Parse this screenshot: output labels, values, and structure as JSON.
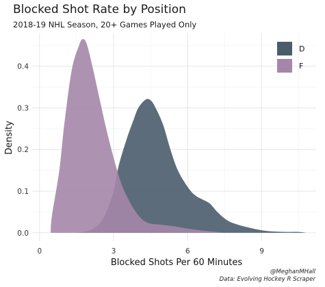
{
  "chart_data": {
    "type": "area",
    "title": "Blocked Shot Rate by Position",
    "subtitle": "2018-19 NHL Season, 20+ Games Played Only",
    "xlabel": "Blocked Shots Per 60 Minutes",
    "ylabel": "Density",
    "xlim": [
      -0.3,
      11.2
    ],
    "ylim": [
      -0.02,
      0.48
    ],
    "x_ticks": [
      0,
      3,
      6,
      9
    ],
    "y_ticks": [
      0.0,
      0.1,
      0.2,
      0.3,
      0.4
    ],
    "y_tick_labels": [
      "0.0",
      "0.1",
      "0.2",
      "0.3",
      "0.4"
    ],
    "grid": true,
    "legend_position": "top-right",
    "series": [
      {
        "name": "D",
        "color": "#4a5c6c",
        "x": [
          1.5,
          2.0,
          2.4,
          2.7,
          3.0,
          3.2,
          3.5,
          3.8,
          4.0,
          4.3,
          4.5,
          4.7,
          5.0,
          5.3,
          5.6,
          6.0,
          6.3,
          6.6,
          6.9,
          7.2,
          7.6,
          8.0,
          8.5,
          9.0,
          9.5,
          10.0,
          10.5,
          10.8
        ],
        "y": [
          0.0,
          0.005,
          0.02,
          0.05,
          0.1,
          0.16,
          0.22,
          0.27,
          0.3,
          0.32,
          0.318,
          0.3,
          0.26,
          0.2,
          0.15,
          0.11,
          0.09,
          0.08,
          0.07,
          0.05,
          0.03,
          0.02,
          0.012,
          0.006,
          0.003,
          0.002,
          0.002,
          0.0
        ]
      },
      {
        "name": "F",
        "color": "#a487a8",
        "x": [
          0.45,
          0.5,
          0.8,
          1.0,
          1.3,
          1.6,
          1.75,
          1.9,
          2.1,
          2.4,
          2.7,
          3.0,
          3.3,
          3.6,
          3.9,
          4.2,
          4.5,
          4.8,
          5.1,
          5.5,
          6.0,
          6.5,
          7.0,
          7.5
        ],
        "y": [
          0.0,
          0.04,
          0.15,
          0.26,
          0.39,
          0.45,
          0.465,
          0.455,
          0.41,
          0.33,
          0.25,
          0.18,
          0.12,
          0.08,
          0.05,
          0.03,
          0.022,
          0.02,
          0.018,
          0.015,
          0.01,
          0.006,
          0.003,
          0.0
        ]
      }
    ],
    "caption": [
      "@MeghanMHall",
      "Data: Evolving Hockey R Scraper"
    ]
  }
}
